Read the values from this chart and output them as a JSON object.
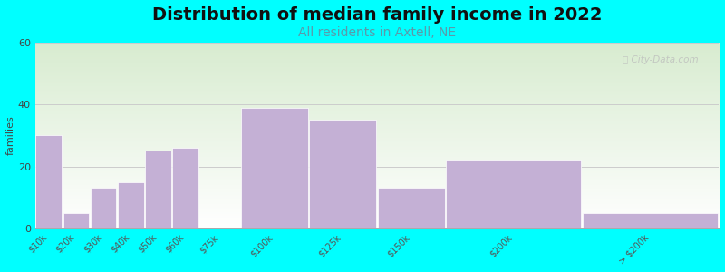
{
  "title": "Distribution of median family income in 2022",
  "subtitle": "All residents in Axtell, NE",
  "ylabel": "families",
  "bin_edges": [
    0,
    10,
    20,
    30,
    40,
    50,
    60,
    75,
    100,
    125,
    150,
    200,
    250
  ],
  "values": [
    30,
    5,
    13,
    15,
    25,
    26,
    0,
    39,
    35,
    13,
    22,
    5
  ],
  "tick_labels": [
    "$10k",
    "$20k",
    "$30k",
    "$40k",
    "$50k",
    "$60k",
    "$75k",
    "$100k",
    "$125k",
    "$150k",
    "$200k",
    "> $200k"
  ],
  "bar_color": "#C4B0D5",
  "bar_edge_color": "#ffffff",
  "background_outer": "#00FFFF",
  "bg_color_top": "#d8ecd0",
  "bg_color_bottom": "#ffffff",
  "ylim": [
    0,
    60
  ],
  "yticks": [
    0,
    20,
    40,
    60
  ],
  "title_fontsize": 14,
  "subtitle_fontsize": 10,
  "subtitle_color": "#5a9aaa",
  "ylabel_fontsize": 8,
  "watermark": "City-Data.com",
  "grid_color": "#cccccc",
  "title_color": "#111111"
}
